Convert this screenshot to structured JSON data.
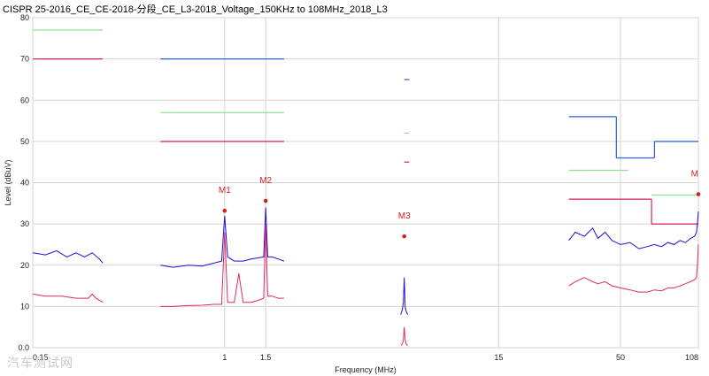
{
  "chart_data": {
    "type": "line",
    "title": "CISPR 25-2016_CE_CE-2018-分段_CE_L3-2018_Voltage_150KHz to 108MHz_2018_L3",
    "xlabel": "Frequency (MHz)",
    "ylabel": "Level (dBuV)",
    "xscale": "log",
    "xlim": [
      0.15,
      108
    ],
    "ylim": [
      0,
      80
    ],
    "x_ticks": [
      {
        "value": 0.15,
        "label": "0.15"
      },
      {
        "value": 1,
        "label": "1"
      },
      {
        "value": 1.5,
        "label": "1.5"
      },
      {
        "value": 15,
        "label": "15"
      },
      {
        "value": 50,
        "label": "50"
      },
      {
        "value": 108,
        "label": "108"
      }
    ],
    "y_ticks": [
      0,
      10,
      20,
      30,
      40,
      50,
      60,
      70,
      80
    ],
    "y_tick_labels": [
      "0.0",
      "10",
      "20",
      "30",
      "40",
      "50",
      "60",
      "70",
      "80"
    ],
    "grid": true,
    "limit_lines": [
      {
        "color": "#2a5fd8",
        "segments": [
          [
            0.53,
            1.8,
            70
          ],
          [
            5.9,
            6.2,
            65
          ],
          [
            30,
            48,
            56
          ],
          [
            48,
            70,
            46
          ],
          [
            70,
            108,
            50
          ]
        ],
        "vertical_steps": [
          [
            48,
            56,
            46
          ],
          [
            70,
            46,
            50
          ]
        ]
      },
      {
        "color": "#90e090",
        "segments": [
          [
            0.15,
            0.3,
            77
          ],
          [
            0.53,
            1.8,
            57
          ],
          [
            5.9,
            6.2,
            52
          ],
          [
            30,
            54,
            43
          ],
          [
            68,
            108,
            37
          ]
        ],
        "vertical_steps": []
      },
      {
        "color": "#d82050",
        "segments": [
          [
            0.15,
            0.3,
            70
          ],
          [
            0.53,
            1.8,
            50
          ],
          [
            5.9,
            6.2,
            45
          ],
          [
            30,
            68,
            36
          ],
          [
            68,
            108,
            30
          ]
        ],
        "vertical_steps": [
          [
            68,
            36,
            30
          ]
        ]
      }
    ],
    "series": [
      {
        "color": "#1a10d8",
        "segments": [
          {
            "x": [
              0.15,
              0.17,
              0.19,
              0.21,
              0.23,
              0.25,
              0.27,
              0.29,
              0.3
            ],
            "y": [
              23,
              22.5,
              23.5,
              22,
              23,
              22,
              23,
              21.5,
              20.5
            ]
          },
          {
            "x": [
              0.53,
              0.6,
              0.7,
              0.8,
              0.9,
              0.97,
              1.0,
              1.03,
              1.1,
              1.2,
              1.3,
              1.4,
              1.47,
              1.5,
              1.53,
              1.6,
              1.7,
              1.8
            ],
            "y": [
              20,
              19.5,
              20,
              19.8,
              20.5,
              21,
              32,
              22,
              21,
              21,
              21.5,
              21.8,
              22,
              34,
              22,
              22,
              21.5,
              21
            ]
          },
          {
            "x": [
              5.7,
              5.8,
              5.85,
              5.9,
              5.95,
              6.0,
              6.1
            ],
            "y": [
              8,
              9.5,
              11,
              17,
              10,
              9,
              8
            ]
          },
          {
            "x": [
              30,
              32,
              35,
              38,
              40,
              43,
              46,
              50,
              55,
              60,
              65,
              70,
              75,
              80,
              85,
              90,
              95,
              100,
              104,
              106,
              107,
              108
            ],
            "y": [
              26,
              28,
              27,
              29,
              26.5,
              28,
              26,
              25,
              25.5,
              24,
              24.5,
              25,
              24.5,
              25.5,
              25,
              26,
              25.5,
              26.5,
              27,
              28,
              30,
              33
            ]
          }
        ]
      },
      {
        "color": "#e02a60",
        "segments": [
          {
            "x": [
              0.15,
              0.17,
              0.2,
              0.23,
              0.26,
              0.27,
              0.28,
              0.3
            ],
            "y": [
              13,
              12.5,
              12.5,
              12,
              12,
              13,
              12,
              11
            ]
          },
          {
            "x": [
              0.53,
              0.6,
              0.7,
              0.8,
              0.9,
              0.97,
              1.0,
              1.03,
              1.1,
              1.15,
              1.2,
              1.3,
              1.4,
              1.47,
              1.5,
              1.53,
              1.6,
              1.7,
              1.8
            ],
            "y": [
              10,
              10,
              10.2,
              10.3,
              10.5,
              10.5,
              28,
              11,
              11,
              18,
              11,
              11,
              11.5,
              12,
              30,
              12.5,
              12.5,
              12,
              12
            ]
          },
          {
            "x": [
              5.7,
              5.8,
              5.85,
              5.9,
              5.95,
              6.0,
              6.1
            ],
            "y": [
              0.5,
              1,
              2,
              5,
              2,
              1,
              0.5
            ]
          },
          {
            "x": [
              30,
              32,
              35,
              38,
              40,
              43,
              46,
              50,
              55,
              60,
              65,
              70,
              75,
              80,
              85,
              90,
              95,
              100,
              104,
              106,
              107,
              108
            ],
            "y": [
              15,
              16,
              17,
              16,
              15.5,
              16,
              15,
              14.5,
              14,
              13.5,
              13.5,
              14,
              13.8,
              14.5,
              14.5,
              15,
              15.5,
              16,
              16.5,
              17,
              20,
              25
            ]
          }
        ]
      }
    ],
    "markers": [
      {
        "label": "M1",
        "x": 1.0,
        "y": 33.2
      },
      {
        "label": "M2",
        "x": 1.5,
        "y": 35.6
      },
      {
        "label": "M3",
        "x": 5.9,
        "y": 27.0
      },
      {
        "label": "M",
        "x": 108,
        "y": 37.2
      }
    ]
  },
  "watermark": "汽车测试网"
}
